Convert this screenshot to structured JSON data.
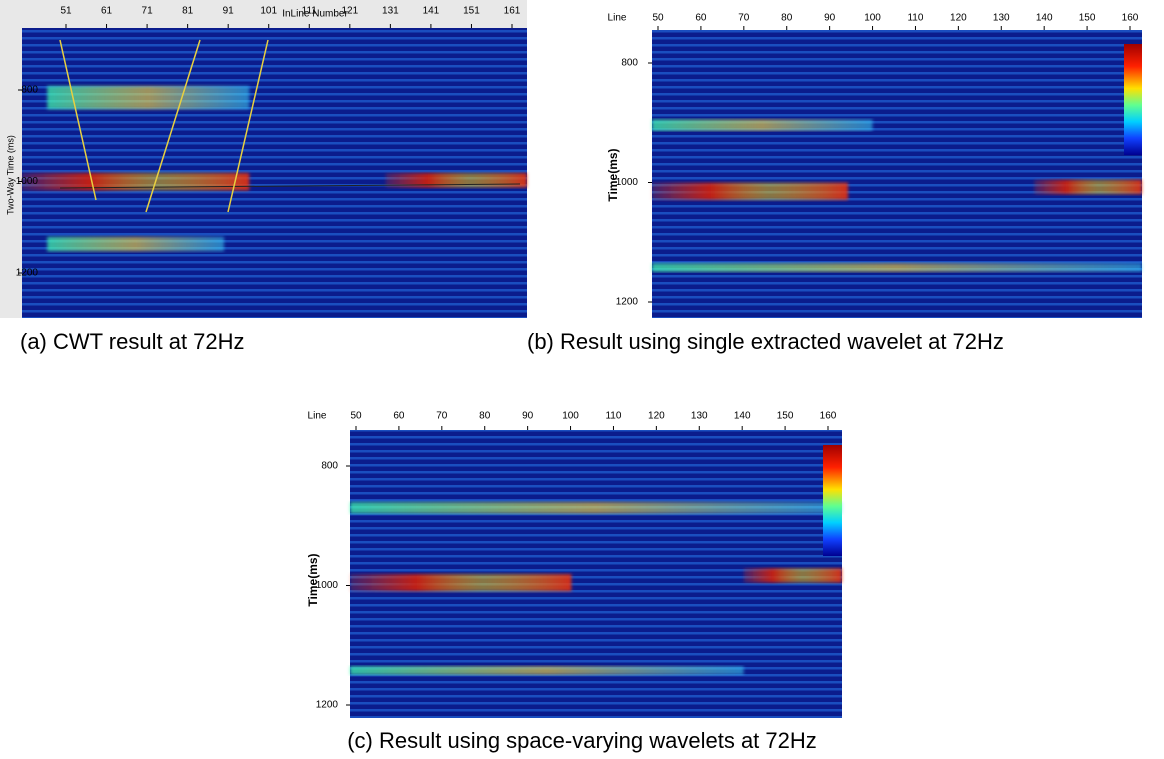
{
  "panels": [
    {
      "x_axis_label": "InLine Number",
      "y_axis_label": "Two-Way Time (ms)",
      "xticks": [
        51,
        61,
        71,
        81,
        91,
        101,
        111,
        121,
        131,
        141,
        151,
        161
      ],
      "yticks": [
        800,
        1000,
        1200
      ],
      "caption": "(a) CWT result at 72Hz"
    },
    {
      "x_axis_label": "Line",
      "y_axis_label": "Time(ms)",
      "xticks": [
        50,
        60,
        70,
        80,
        90,
        100,
        110,
        120,
        130,
        140,
        150,
        160
      ],
      "yticks": [
        800,
        1000,
        1200
      ],
      "caption": "(b) Result using single extracted wavelet at 72Hz"
    },
    {
      "x_axis_label": "Line",
      "y_axis_label": "Time(ms)",
      "xticks": [
        50,
        60,
        70,
        80,
        90,
        100,
        110,
        120,
        130,
        140,
        150,
        160
      ],
      "yticks": [
        800,
        1000,
        1200
      ],
      "caption": "(c) Result using space-varying wavelets at 72Hz"
    }
  ]
}
